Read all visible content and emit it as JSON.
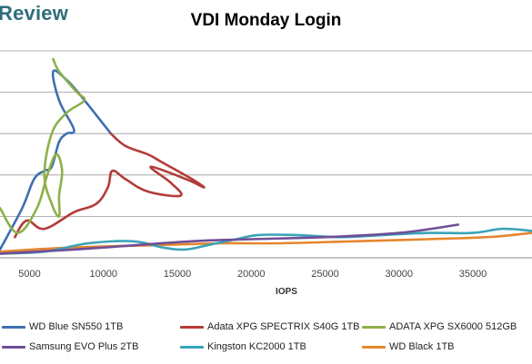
{
  "watermark": "Review",
  "chart_data": {
    "type": "line",
    "title": "VDI Monday Login",
    "xlabel": "IOPS",
    "ylabel": "",
    "xlim": [
      3000,
      39000
    ],
    "x_ticks": [
      5000,
      10000,
      15000,
      20000,
      25000,
      30000,
      35000
    ],
    "grid": "horizontal",
    "legend_position": "bottom",
    "series": [
      {
        "name": "WD Blue SN550 1TB",
        "color": "#3f6fb0",
        "x": [
          3000,
          4500,
          5300,
          6000,
          6500,
          7000,
          7500,
          8000,
          7000,
          6600,
          7500,
          8500,
          10500
        ],
        "y": [
          0.2,
          1.2,
          1.9,
          2.1,
          2.2,
          2.8,
          3.0,
          3.1,
          3.8,
          4.5,
          4.3,
          3.9,
          3.0
        ]
      },
      {
        "name": "Adata XPG SPECTRIX S40G 1TB",
        "color": "#b23c38",
        "x": [
          4000,
          4800,
          6000,
          8000,
          9500,
          10300,
          10600,
          11500,
          13000,
          15200,
          14600,
          13200,
          15600,
          16800,
          16000,
          14000,
          13000,
          11500,
          10500
        ],
        "y": [
          0.5,
          0.9,
          0.7,
          1.1,
          1.3,
          1.7,
          2.1,
          1.9,
          1.6,
          1.5,
          1.8,
          2.2,
          1.9,
          1.7,
          1.9,
          2.3,
          2.5,
          2.7,
          3.0
        ]
      },
      {
        "name": "ADATA XPG SX6000 512GB",
        "color": "#8db04a",
        "x": [
          3000,
          4200,
          5500,
          6200,
          6800,
          7200,
          7000,
          7000,
          6500,
          6000,
          6500,
          7500,
          8700,
          8200,
          7000,
          6600
        ],
        "y": [
          1.2,
          0.6,
          1.2,
          2.0,
          2.5,
          2.1,
          1.5,
          1.0,
          1.3,
          2.0,
          3.0,
          3.5,
          3.8,
          4.0,
          4.5,
          4.8
        ]
      },
      {
        "name": "Samsung EVO Plus 2TB",
        "color": "#6f4f97",
        "x": [
          3000,
          8000,
          12000,
          16000,
          20000,
          25000,
          30000,
          34000
        ],
        "y": [
          0.1,
          0.2,
          0.3,
          0.4,
          0.45,
          0.5,
          0.6,
          0.8
        ]
      },
      {
        "name": "Kingston KC2000 1TB",
        "color": "#3aa3b7",
        "x": [
          3000,
          6000,
          9000,
          12000,
          14000,
          15500,
          17000,
          19000,
          20500,
          23000,
          26000,
          29000,
          32000,
          35000,
          37000,
          39000
        ],
        "y": [
          0.1,
          0.15,
          0.35,
          0.4,
          0.25,
          0.2,
          0.3,
          0.45,
          0.55,
          0.55,
          0.5,
          0.55,
          0.6,
          0.6,
          0.7,
          0.65
        ]
      },
      {
        "name": "WD Black 1TB",
        "color": "#e5862f",
        "x": [
          3000,
          8000,
          13000,
          18000,
          22000,
          27000,
          32000,
          36000,
          39000
        ],
        "y": [
          0.15,
          0.25,
          0.3,
          0.35,
          0.35,
          0.4,
          0.45,
          0.5,
          0.6
        ]
      }
    ]
  }
}
